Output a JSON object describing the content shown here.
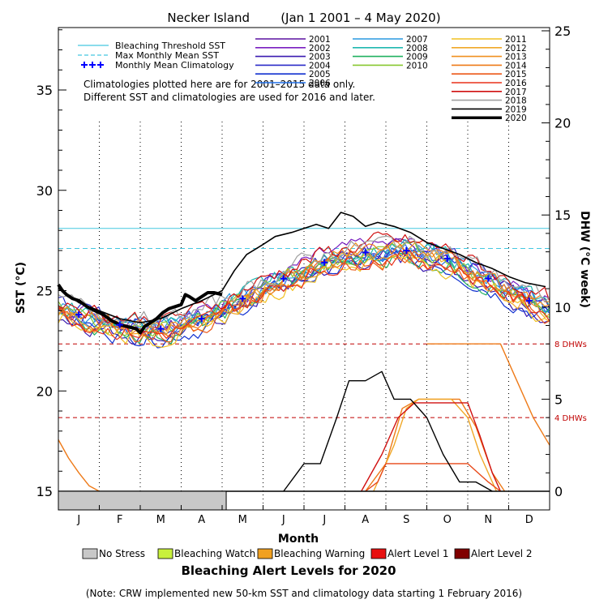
{
  "chart_data": {
    "type": "line",
    "title": "Necker Island        (Jan 1 2001 – 4 May 2020)",
    "xlabel": "Month",
    "ylabel_left": "SST (°C)",
    "ylabel_right": "DHW (°C week)",
    "month_labels": [
      "J",
      "F",
      "M",
      "A",
      "M",
      "J",
      "J",
      "A",
      "S",
      "O",
      "N",
      "D"
    ],
    "ylim_left": [
      15,
      38
    ],
    "yticks_left": [
      15,
      20,
      25,
      30,
      35
    ],
    "ylim_right": [
      0,
      25
    ],
    "yticks_right": [
      0,
      5,
      10,
      15,
      20,
      25
    ],
    "bleaching_threshold_sst": 28.1,
    "max_monthly_mean_sst": 27.1,
    "dhw_lines": [
      {
        "label": "8 DHWs",
        "value": 8
      },
      {
        "label": "4 DHWs",
        "value": 4
      }
    ],
    "monthly_mean_climatology": [
      23.8,
      23.3,
      23.1,
      23.6,
      24.6,
      25.6,
      26.4,
      26.9,
      27.0,
      26.6,
      25.6,
      24.5
    ],
    "legend_lines": [
      {
        "name": "Bleaching Threshold SST",
        "color": "#44c8e0",
        "style": "solid"
      },
      {
        "name": "Max Monthly Mean SST",
        "color": "#44c8e0",
        "style": "dashed"
      },
      {
        "name": "Monthly Mean Climatology",
        "color": "#0000ff",
        "style": "plus"
      }
    ],
    "note_lines": [
      "Climatologies plotted here are for 2001–2015 data only.",
      "Different SST and climatologies are used for 2016 and later."
    ],
    "years": [
      {
        "name": "2001",
        "color": "#5a10a0"
      },
      {
        "name": "2002",
        "color": "#7a1fc0"
      },
      {
        "name": "2003",
        "color": "#3a1ab0"
      },
      {
        "name": "2004",
        "color": "#2a2ac8"
      },
      {
        "name": "2005",
        "color": "#1030d0"
      },
      {
        "name": "2006",
        "color": "#1f6fe8"
      },
      {
        "name": "2007",
        "color": "#2898e0"
      },
      {
        "name": "2008",
        "color": "#20b8b0"
      },
      {
        "name": "2009",
        "color": "#20b060"
      },
      {
        "name": "2010",
        "color": "#88c830"
      },
      {
        "name": "2011",
        "color": "#f0c020"
      },
      {
        "name": "2012",
        "color": "#f0a828"
      },
      {
        "name": "2013",
        "color": "#f09020"
      },
      {
        "name": "2014",
        "color": "#ee7a18"
      },
      {
        "name": "2015",
        "color": "#ec5818"
      },
      {
        "name": "2016",
        "color": "#e83018"
      },
      {
        "name": "2017",
        "color": "#d01010"
      },
      {
        "name": "2018",
        "color": "#a0a0a0"
      },
      {
        "name": "2019",
        "color": "#000000"
      },
      {
        "name": "2020",
        "color": "#000000",
        "bold": true
      }
    ],
    "sst_2020": [
      {
        "month": 0.0,
        "sst": 25.3
      },
      {
        "month": 0.1,
        "sst": 25.0
      },
      {
        "month": 0.2,
        "sst": 24.8
      },
      {
        "month": 0.35,
        "sst": 24.6
      },
      {
        "month": 0.5,
        "sst": 24.5
      },
      {
        "month": 0.7,
        "sst": 24.2
      },
      {
        "month": 0.9,
        "sst": 24.0
      },
      {
        "month": 1.1,
        "sst": 23.8
      },
      {
        "month": 1.3,
        "sst": 23.5
      },
      {
        "month": 1.5,
        "sst": 23.3
      },
      {
        "month": 1.7,
        "sst": 23.2
      },
      {
        "month": 1.9,
        "sst": 23.1
      },
      {
        "month": 2.0,
        "sst": 22.9
      },
      {
        "month": 2.1,
        "sst": 23.2
      },
      {
        "month": 2.25,
        "sst": 23.4
      },
      {
        "month": 2.4,
        "sst": 23.6
      },
      {
        "month": 2.55,
        "sst": 23.9
      },
      {
        "month": 2.7,
        "sst": 24.1
      },
      {
        "month": 2.85,
        "sst": 24.2
      },
      {
        "month": 3.0,
        "sst": 24.3
      },
      {
        "month": 3.1,
        "sst": 24.8
      },
      {
        "month": 3.2,
        "sst": 24.7
      },
      {
        "month": 3.35,
        "sst": 24.5
      },
      {
        "month": 3.5,
        "sst": 24.7
      },
      {
        "month": 3.65,
        "sst": 24.9
      },
      {
        "month": 3.8,
        "sst": 24.9
      },
      {
        "month": 4.0,
        "sst": 24.8
      }
    ],
    "sst_2019": [
      {
        "month": 0.0,
        "sst": 25.1
      },
      {
        "month": 0.5,
        "sst": 24.4
      },
      {
        "month": 1.0,
        "sst": 24.0
      },
      {
        "month": 1.5,
        "sst": 23.6
      },
      {
        "month": 2.0,
        "sst": 23.4
      },
      {
        "month": 2.5,
        "sst": 23.6
      },
      {
        "month": 3.0,
        "sst": 24.1
      },
      {
        "month": 3.5,
        "sst": 24.5
      },
      {
        "month": 4.0,
        "sst": 25.0
      },
      {
        "month": 4.3,
        "sst": 26.0
      },
      {
        "month": 4.6,
        "sst": 26.8
      },
      {
        "month": 5.0,
        "sst": 27.3
      },
      {
        "month": 5.3,
        "sst": 27.7
      },
      {
        "month": 5.7,
        "sst": 27.9
      },
      {
        "month": 6.0,
        "sst": 28.1
      },
      {
        "month": 6.3,
        "sst": 28.3
      },
      {
        "month": 6.6,
        "sst": 28.1
      },
      {
        "month": 6.9,
        "sst": 28.9
      },
      {
        "month": 7.2,
        "sst": 28.7
      },
      {
        "month": 7.5,
        "sst": 28.2
      },
      {
        "month": 7.8,
        "sst": 28.4
      },
      {
        "month": 8.2,
        "sst": 28.2
      },
      {
        "month": 8.6,
        "sst": 27.9
      },
      {
        "month": 9.0,
        "sst": 27.4
      },
      {
        "month": 9.4,
        "sst": 27.1
      },
      {
        "month": 9.8,
        "sst": 26.8
      },
      {
        "month": 10.2,
        "sst": 26.4
      },
      {
        "month": 10.6,
        "sst": 26.1
      },
      {
        "month": 11.0,
        "sst": 25.7
      },
      {
        "month": 11.4,
        "sst": 25.4
      },
      {
        "month": 11.9,
        "sst": 25.2
      }
    ],
    "dhw_2019": [
      {
        "month": 5.5,
        "dhw": 0.0
      },
      {
        "month": 6.0,
        "dhw": 1.5
      },
      {
        "month": 6.4,
        "dhw": 1.5
      },
      {
        "month": 6.8,
        "dhw": 4.0
      },
      {
        "month": 7.1,
        "dhw": 6.0
      },
      {
        "month": 7.5,
        "dhw": 6.0
      },
      {
        "month": 7.9,
        "dhw": 6.5
      },
      {
        "month": 8.2,
        "dhw": 5.0
      },
      {
        "month": 8.6,
        "dhw": 5.0
      },
      {
        "month": 9.0,
        "dhw": 4.0
      },
      {
        "month": 9.4,
        "dhw": 2.0
      },
      {
        "month": 9.8,
        "dhw": 0.5
      },
      {
        "month": 10.2,
        "dhw": 0.5
      },
      {
        "month": 10.6,
        "dhw": 0.0
      }
    ],
    "dhw_2015": [
      {
        "month": 7.6,
        "dhw": 0.0
      },
      {
        "month": 8.2,
        "dhw": 3.0
      },
      {
        "month": 8.5,
        "dhw": 5.0
      },
      {
        "month": 8.9,
        "dhw": 6.5
      },
      {
        "month": 9.2,
        "dhw": 8.5
      },
      {
        "month": 9.6,
        "dhw": 8.5
      },
      {
        "month": 10.0,
        "dhw": 8.5
      },
      {
        "month": 10.3,
        "dhw": 7.5
      },
      {
        "month": 10.6,
        "dhw": 5.0
      },
      {
        "month": 10.9,
        "dhw": 2.0
      },
      {
        "month": 11.2,
        "dhw": 0.0
      }
    ],
    "dhw_2014": [
      {
        "month": 7.5,
        "dhw": 0.0
      },
      {
        "month": 8.0,
        "dhw": 1.5
      },
      {
        "month": 8.4,
        "dhw": 4.5
      },
      {
        "month": 8.8,
        "dhw": 5.0
      },
      {
        "month": 9.4,
        "dhw": 5.0
      },
      {
        "month": 9.8,
        "dhw": 5.0
      },
      {
        "month": 10.2,
        "dhw": 3.5
      },
      {
        "month": 10.6,
        "dhw": 1.0
      },
      {
        "month": 10.9,
        "dhw": 0.0
      }
    ],
    "dhw_2017": [
      {
        "month": 7.4,
        "dhw": 0.0
      },
      {
        "month": 7.9,
        "dhw": 2.0
      },
      {
        "month": 8.3,
        "dhw": 4.0
      },
      {
        "month": 8.7,
        "dhw": 4.8
      },
      {
        "month": 9.4,
        "dhw": 4.8
      },
      {
        "month": 10.0,
        "dhw": 4.8
      },
      {
        "month": 10.3,
        "dhw": 3.0
      },
      {
        "month": 10.6,
        "dhw": 1.0
      },
      {
        "month": 10.8,
        "dhw": 0.0
      }
    ],
    "dhw_2016": [
      {
        "month": 7.5,
        "dhw": 0.0
      },
      {
        "month": 7.8,
        "dhw": 0.5
      },
      {
        "month": 8.0,
        "dhw": 1.5
      },
      {
        "month": 9.0,
        "dhw": 1.5
      },
      {
        "month": 10.0,
        "dhw": 1.5
      },
      {
        "month": 10.5,
        "dhw": 0.5
      },
      {
        "month": 10.8,
        "dhw": 0.0
      }
    ],
    "dhw_2012": [
      {
        "month": 7.7,
        "dhw": 0.0
      },
      {
        "month": 8.2,
        "dhw": 2.5
      },
      {
        "month": 8.5,
        "dhw": 4.5
      },
      {
        "month": 8.8,
        "dhw": 5.0
      },
      {
        "month": 9.6,
        "dhw": 5.0
      },
      {
        "month": 10.0,
        "dhw": 4.0
      },
      {
        "month": 10.3,
        "dhw": 2.0
      },
      {
        "month": 10.7,
        "dhw": 0.0
      }
    ],
    "dhw_early": [
      {
        "month": 0.0,
        "dhw": 2.8
      },
      {
        "month": 0.25,
        "dhw": 1.8
      },
      {
        "month": 0.5,
        "dhw": 1.0
      },
      {
        "month": 0.75,
        "dhw": 0.3
      },
      {
        "month": 1.0,
        "dhw": 0.0
      }
    ],
    "dhw_late_orange": [
      {
        "month": 9.0,
        "dhw": 8.0
      },
      {
        "month": 9.3,
        "dhw": 8.0
      },
      {
        "month": 10.3,
        "dhw": 8.0
      },
      {
        "month": 10.8,
        "dhw": 8.0
      },
      {
        "month": 11.2,
        "dhw": 6.0
      },
      {
        "month": 11.6,
        "dhw": 4.0
      },
      {
        "month": 12.0,
        "dhw": 2.5
      }
    ],
    "alert_legend": [
      {
        "label": "No Stress",
        "color": "#c8c8c8"
      },
      {
        "label": "Bleaching Watch",
        "color": "#c8f03c"
      },
      {
        "label": "Bleaching Warning",
        "color": "#f0a020"
      },
      {
        "label": "Alert Level 1",
        "color": "#e81010"
      },
      {
        "label": "Alert Level 2",
        "color": "#800000"
      }
    ],
    "alert_bar_2020": [
      {
        "level": "No Stress",
        "start_month": 0,
        "end_month": 4.1
      }
    ],
    "alert_title": "Bleaching Alert Levels for 2020",
    "footnote": "(Note: CRW implemented new 50-km SST and climatology data starting 1 February 2016)"
  }
}
